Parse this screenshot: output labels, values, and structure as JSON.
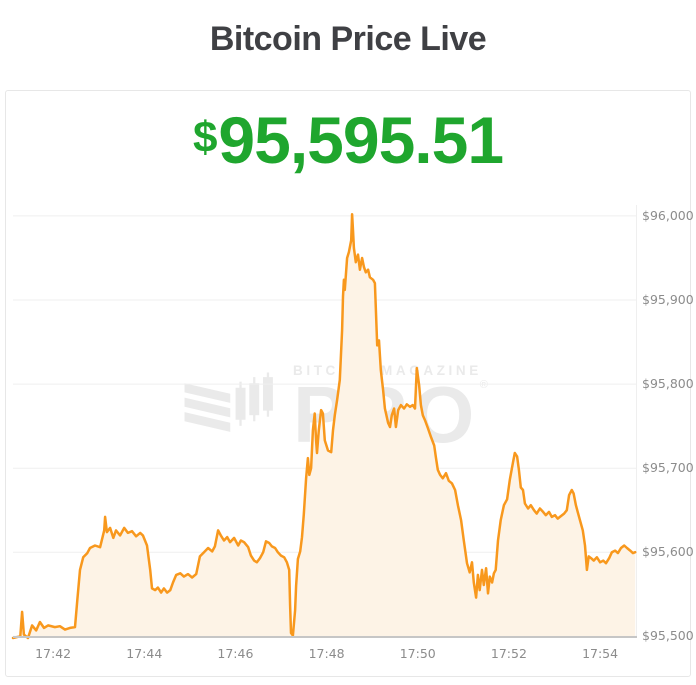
{
  "header": {
    "title": "Bitcoin Price Live"
  },
  "price": {
    "currency_symbol": "$",
    "value": "95,595.51",
    "color": "#1fa62e"
  },
  "watermark": {
    "line1": "BITCOIN MAGAZINE",
    "line2": "PRO",
    "registered": "®",
    "color": "#eaeaea"
  },
  "colors": {
    "title_text": "#3f4044",
    "card_border": "#e7e7e7",
    "axis_label": "#8c8c8c",
    "background": "#ffffff"
  },
  "chart_data": {
    "type": "area",
    "title": "Bitcoin Price Live",
    "xlabel": "",
    "ylabel": "",
    "x_unit": "minutes after 17:41",
    "xlim": [
      0.12,
      13.81
    ],
    "ylim": [
      95498,
      96013
    ],
    "grid": true,
    "legend": "none",
    "line_color": "#f8981d",
    "fill_color": "#fdf3e6",
    "grid_color": "#efefef",
    "axis_color": "#c6c6c6",
    "x_ticks": [
      {
        "m": 1,
        "label": "17:42"
      },
      {
        "m": 3,
        "label": "17:44"
      },
      {
        "m": 5,
        "label": "17:46"
      },
      {
        "m": 7,
        "label": "17:48"
      },
      {
        "m": 9,
        "label": "17:50"
      },
      {
        "m": 11,
        "label": "17:52"
      },
      {
        "m": 13,
        "label": "17:54"
      }
    ],
    "y_ticks": [
      {
        "value": 96000,
        "label": "$96,000"
      },
      {
        "value": 95900,
        "label": "$95,900"
      },
      {
        "value": 95800,
        "label": "$95,800"
      },
      {
        "value": 95700,
        "label": "$95,700"
      },
      {
        "value": 95600,
        "label": "$95,600"
      },
      {
        "value": 95500,
        "label": "$95,500"
      }
    ],
    "points": [
      [
        0.12,
        95498
      ],
      [
        0.28,
        95500
      ],
      [
        0.32,
        95529
      ],
      [
        0.36,
        95502
      ],
      [
        0.45,
        95498
      ],
      [
        0.54,
        95513
      ],
      [
        0.63,
        95507
      ],
      [
        0.71,
        95517
      ],
      [
        0.8,
        95510
      ],
      [
        0.89,
        95513
      ],
      [
        1.04,
        95511
      ],
      [
        1.15,
        95512
      ],
      [
        1.26,
        95508
      ],
      [
        1.37,
        95510
      ],
      [
        1.48,
        95511
      ],
      [
        1.53,
        95543
      ],
      [
        1.59,
        95579
      ],
      [
        1.66,
        95594
      ],
      [
        1.75,
        95599
      ],
      [
        1.81,
        95605
      ],
      [
        1.92,
        95608
      ],
      [
        2.03,
        95606
      ],
      [
        2.12,
        95626
      ],
      [
        2.14,
        95642
      ],
      [
        2.18,
        95624
      ],
      [
        2.25,
        95629
      ],
      [
        2.32,
        95617
      ],
      [
        2.38,
        95626
      ],
      [
        2.47,
        95620
      ],
      [
        2.56,
        95629
      ],
      [
        2.64,
        95623
      ],
      [
        2.73,
        95625
      ],
      [
        2.82,
        95619
      ],
      [
        2.91,
        95623
      ],
      [
        2.97,
        95620
      ],
      [
        3.06,
        95608
      ],
      [
        3.13,
        95579
      ],
      [
        3.17,
        95557
      ],
      [
        3.24,
        95555
      ],
      [
        3.3,
        95558
      ],
      [
        3.37,
        95552
      ],
      [
        3.43,
        95557
      ],
      [
        3.5,
        95552
      ],
      [
        3.57,
        95555
      ],
      [
        3.63,
        95564
      ],
      [
        3.7,
        95573
      ],
      [
        3.79,
        95575
      ],
      [
        3.87,
        95571
      ],
      [
        3.96,
        95574
      ],
      [
        4.05,
        95570
      ],
      [
        4.14,
        95574
      ],
      [
        4.22,
        95595
      ],
      [
        4.31,
        95600
      ],
      [
        4.4,
        95605
      ],
      [
        4.49,
        95601
      ],
      [
        4.55,
        95607
      ],
      [
        4.62,
        95626
      ],
      [
        4.68,
        95620
      ],
      [
        4.75,
        95614
      ],
      [
        4.82,
        95618
      ],
      [
        4.88,
        95612
      ],
      [
        4.97,
        95617
      ],
      [
        5.06,
        95608
      ],
      [
        5.12,
        95614
      ],
      [
        5.19,
        95612
      ],
      [
        5.28,
        95606
      ],
      [
        5.34,
        95596
      ],
      [
        5.41,
        95590
      ],
      [
        5.47,
        95588
      ],
      [
        5.54,
        95593
      ],
      [
        5.61,
        95600
      ],
      [
        5.67,
        95613
      ],
      [
        5.74,
        95611
      ],
      [
        5.8,
        95607
      ],
      [
        5.87,
        95605
      ],
      [
        5.93,
        95600
      ],
      [
        6.0,
        95596
      ],
      [
        6.07,
        95594
      ],
      [
        6.13,
        95588
      ],
      [
        6.18,
        95579
      ],
      [
        6.2,
        95537
      ],
      [
        6.22,
        95504
      ],
      [
        6.26,
        95501
      ],
      [
        6.31,
        95531
      ],
      [
        6.33,
        95560
      ],
      [
        6.37,
        95592
      ],
      [
        6.42,
        95601
      ],
      [
        6.46,
        95618
      ],
      [
        6.5,
        95645
      ],
      [
        6.55,
        95688
      ],
      [
        6.59,
        95712
      ],
      [
        6.62,
        95692
      ],
      [
        6.66,
        95700
      ],
      [
        6.7,
        95745
      ],
      [
        6.74,
        95765
      ],
      [
        6.77,
        95733
      ],
      [
        6.79,
        95718
      ],
      [
        6.83,
        95745
      ],
      [
        6.88,
        95769
      ],
      [
        6.92,
        95765
      ],
      [
        6.96,
        95733
      ],
      [
        7.03,
        95721
      ],
      [
        7.1,
        95719
      ],
      [
        7.14,
        95745
      ],
      [
        7.18,
        95763
      ],
      [
        7.23,
        95781
      ],
      [
        7.29,
        95805
      ],
      [
        7.34,
        95864
      ],
      [
        7.36,
        95904
      ],
      [
        7.38,
        95924
      ],
      [
        7.4,
        95912
      ],
      [
        7.45,
        95950
      ],
      [
        7.49,
        95957
      ],
      [
        7.54,
        95971
      ],
      [
        7.56,
        96002
      ],
      [
        7.58,
        95983
      ],
      [
        7.6,
        95962
      ],
      [
        7.64,
        95945
      ],
      [
        7.69,
        95954
      ],
      [
        7.73,
        95936
      ],
      [
        7.78,
        95950
      ],
      [
        7.82,
        95939
      ],
      [
        7.86,
        95933
      ],
      [
        7.91,
        95936
      ],
      [
        7.95,
        95927
      ],
      [
        8.02,
        95924
      ],
      [
        8.06,
        95920
      ],
      [
        8.11,
        95846
      ],
      [
        8.15,
        95852
      ],
      [
        8.19,
        95817
      ],
      [
        8.24,
        95793
      ],
      [
        8.28,
        95771
      ],
      [
        8.35,
        95754
      ],
      [
        8.39,
        95749
      ],
      [
        8.43,
        95763
      ],
      [
        8.48,
        95771
      ],
      [
        8.52,
        95749
      ],
      [
        8.57,
        95769
      ],
      [
        8.63,
        95775
      ],
      [
        8.7,
        95771
      ],
      [
        8.76,
        95776
      ],
      [
        8.83,
        95773
      ],
      [
        8.89,
        95775
      ],
      [
        8.94,
        95771
      ],
      [
        8.98,
        95819
      ],
      [
        9.03,
        95799
      ],
      [
        9.07,
        95775
      ],
      [
        9.11,
        95763
      ],
      [
        9.16,
        95757
      ],
      [
        9.22,
        95748
      ],
      [
        9.29,
        95737
      ],
      [
        9.36,
        95727
      ],
      [
        9.4,
        95712
      ],
      [
        9.44,
        95698
      ],
      [
        9.49,
        95692
      ],
      [
        9.55,
        95688
      ],
      [
        9.62,
        95694
      ],
      [
        9.68,
        95685
      ],
      [
        9.75,
        95682
      ],
      [
        9.82,
        95674
      ],
      [
        9.88,
        95656
      ],
      [
        9.95,
        95638
      ],
      [
        10.01,
        95614
      ],
      [
        10.08,
        95587
      ],
      [
        10.14,
        95576
      ],
      [
        10.19,
        95588
      ],
      [
        10.23,
        95564
      ],
      [
        10.28,
        95546
      ],
      [
        10.32,
        95573
      ],
      [
        10.36,
        95555
      ],
      [
        10.41,
        95579
      ],
      [
        10.45,
        95561
      ],
      [
        10.5,
        95581
      ],
      [
        10.54,
        95551
      ],
      [
        10.58,
        95571
      ],
      [
        10.63,
        95564
      ],
      [
        10.67,
        95575
      ],
      [
        10.71,
        95579
      ],
      [
        10.76,
        95614
      ],
      [
        10.82,
        95638
      ],
      [
        10.89,
        95656
      ],
      [
        10.96,
        95663
      ],
      [
        11.02,
        95686
      ],
      [
        11.09,
        95707
      ],
      [
        11.13,
        95718
      ],
      [
        11.18,
        95714
      ],
      [
        11.22,
        95698
      ],
      [
        11.26,
        95677
      ],
      [
        11.31,
        95674
      ],
      [
        11.35,
        95658
      ],
      [
        11.42,
        95652
      ],
      [
        11.48,
        95656
      ],
      [
        11.55,
        95650
      ],
      [
        11.61,
        95646
      ],
      [
        11.68,
        95652
      ],
      [
        11.75,
        95648
      ],
      [
        11.81,
        95644
      ],
      [
        11.88,
        95648
      ],
      [
        11.94,
        95642
      ],
      [
        12.01,
        95644
      ],
      [
        12.07,
        95640
      ],
      [
        12.14,
        95643
      ],
      [
        12.21,
        95646
      ],
      [
        12.27,
        95650
      ],
      [
        12.32,
        95668
      ],
      [
        12.38,
        95674
      ],
      [
        12.42,
        95670
      ],
      [
        12.47,
        95656
      ],
      [
        12.51,
        95648
      ],
      [
        12.56,
        95638
      ],
      [
        12.62,
        95626
      ],
      [
        12.67,
        95608
      ],
      [
        12.71,
        95579
      ],
      [
        12.75,
        95595
      ],
      [
        12.8,
        95593
      ],
      [
        12.86,
        95590
      ],
      [
        12.93,
        95594
      ],
      [
        13.0,
        95588
      ],
      [
        13.07,
        95590
      ],
      [
        13.13,
        95587
      ],
      [
        13.2,
        95593
      ],
      [
        13.26,
        95600
      ],
      [
        13.33,
        95602
      ],
      [
        13.39,
        95599
      ],
      [
        13.46,
        95605
      ],
      [
        13.53,
        95608
      ],
      [
        13.59,
        95605
      ],
      [
        13.66,
        95602
      ],
      [
        13.72,
        95599
      ],
      [
        13.77,
        95600
      ]
    ]
  }
}
